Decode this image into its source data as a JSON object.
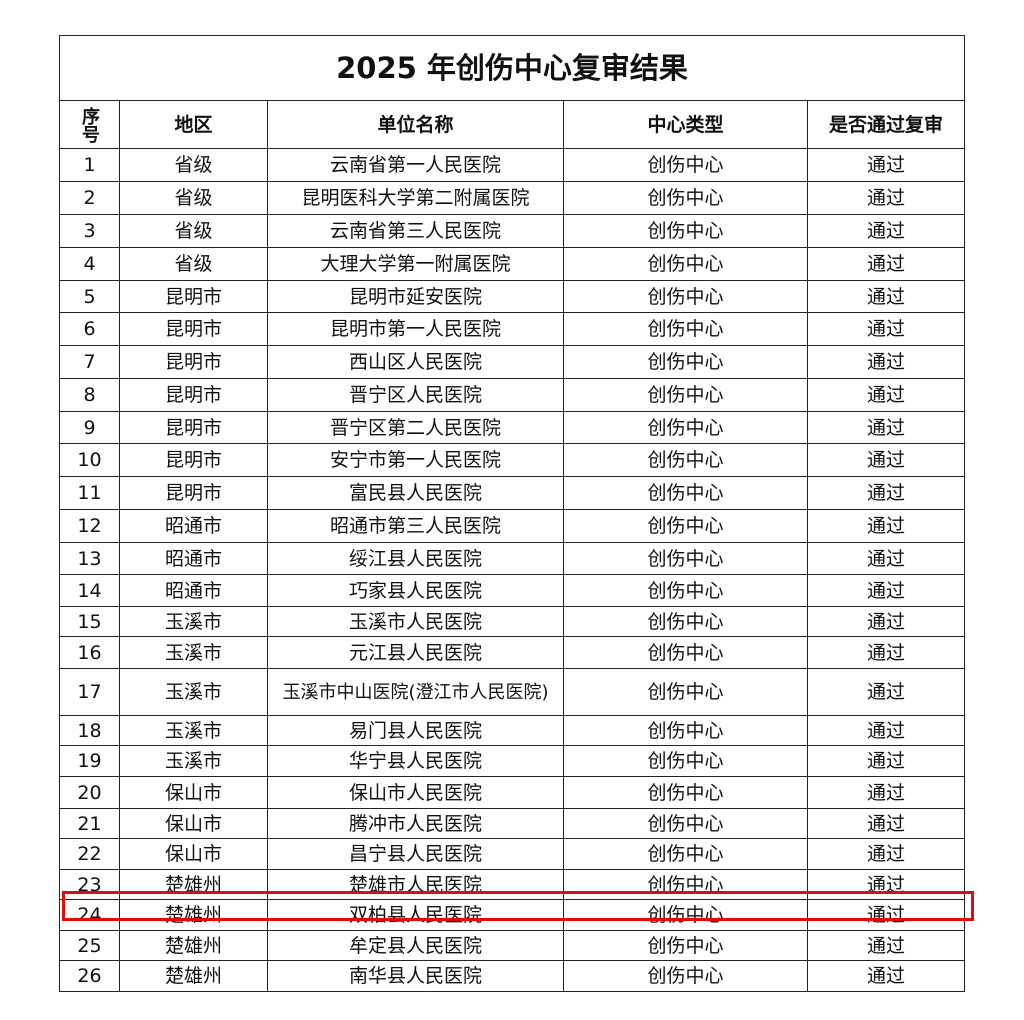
{
  "title": "2025 年创伤中心复审结果",
  "headers": {
    "seq": "序号",
    "region": "地区",
    "unit": "单位名称",
    "type": "中心类型",
    "passed": "是否通过复审"
  },
  "highlight_color": "#e10b0b",
  "highlighted_row": "23",
  "rows": [
    {
      "seq": "1",
      "region": "省级",
      "unit": "云南省第一人民医院",
      "type": "创伤中心",
      "passed": "通过"
    },
    {
      "seq": "2",
      "region": "省级",
      "unit": "昆明医科大学第二附属医院",
      "type": "创伤中心",
      "passed": "通过"
    },
    {
      "seq": "3",
      "region": "省级",
      "unit": "云南省第三人民医院",
      "type": "创伤中心",
      "passed": "通过"
    },
    {
      "seq": "4",
      "region": "省级",
      "unit": "大理大学第一附属医院",
      "type": "创伤中心",
      "passed": "通过"
    },
    {
      "seq": "5",
      "region": "昆明市",
      "unit": "昆明市延安医院",
      "type": "创伤中心",
      "passed": "通过"
    },
    {
      "seq": "6",
      "region": "昆明市",
      "unit": "昆明市第一人民医院",
      "type": "创伤中心",
      "passed": "通过"
    },
    {
      "seq": "7",
      "region": "昆明市",
      "unit": "西山区人民医院",
      "type": "创伤中心",
      "passed": "通过"
    },
    {
      "seq": "8",
      "region": "昆明市",
      "unit": "晋宁区人民医院",
      "type": "创伤中心",
      "passed": "通过"
    },
    {
      "seq": "9",
      "region": "昆明市",
      "unit": "晋宁区第二人民医院",
      "type": "创伤中心",
      "passed": "通过"
    },
    {
      "seq": "10",
      "region": "昆明市",
      "unit": "安宁市第一人民医院",
      "type": "创伤中心",
      "passed": "通过"
    },
    {
      "seq": "11",
      "region": "昆明市",
      "unit": "富民县人民医院",
      "type": "创伤中心",
      "passed": "通过"
    },
    {
      "seq": "12",
      "region": "昭通市",
      "unit": "昭通市第三人民医院",
      "type": "创伤中心",
      "passed": "通过"
    },
    {
      "seq": "13",
      "region": "昭通市",
      "unit": "绥江县人民医院",
      "type": "创伤中心",
      "passed": "通过"
    },
    {
      "seq": "14",
      "region": "昭通市",
      "unit": "巧家县人民医院",
      "type": "创伤中心",
      "passed": "通过"
    },
    {
      "seq": "15",
      "region": "玉溪市",
      "unit": "玉溪市人民医院",
      "type": "创伤中心",
      "passed": "通过"
    },
    {
      "seq": "16",
      "region": "玉溪市",
      "unit": "元江县人民医院",
      "type": "创伤中心",
      "passed": "通过"
    },
    {
      "seq": "17",
      "region": "玉溪市",
      "unit": "玉溪市中山医院(澄江市人民医院)",
      "type": "创伤中心",
      "passed": "通过"
    },
    {
      "seq": "18",
      "region": "玉溪市",
      "unit": "易门县人民医院",
      "type": "创伤中心",
      "passed": "通过"
    },
    {
      "seq": "19",
      "region": "玉溪市",
      "unit": "华宁县人民医院",
      "type": "创伤中心",
      "passed": "通过"
    },
    {
      "seq": "20",
      "region": "保山市",
      "unit": "保山市人民医院",
      "type": "创伤中心",
      "passed": "通过"
    },
    {
      "seq": "21",
      "region": "保山市",
      "unit": "腾冲市人民医院",
      "type": "创伤中心",
      "passed": "通过"
    },
    {
      "seq": "22",
      "region": "保山市",
      "unit": "昌宁县人民医院",
      "type": "创伤中心",
      "passed": "通过"
    },
    {
      "seq": "23",
      "region": "楚雄州",
      "unit": "楚雄市人民医院",
      "type": "创伤中心",
      "passed": "通过"
    },
    {
      "seq": "24",
      "region": "楚雄州",
      "unit": "双柏县人民医院",
      "type": "创伤中心",
      "passed": "通过"
    },
    {
      "seq": "25",
      "region": "楚雄州",
      "unit": "牟定县人民医院",
      "type": "创伤中心",
      "passed": "通过"
    },
    {
      "seq": "26",
      "region": "楚雄州",
      "unit": "南华县人民医院",
      "type": "创伤中心",
      "passed": "通过"
    }
  ]
}
